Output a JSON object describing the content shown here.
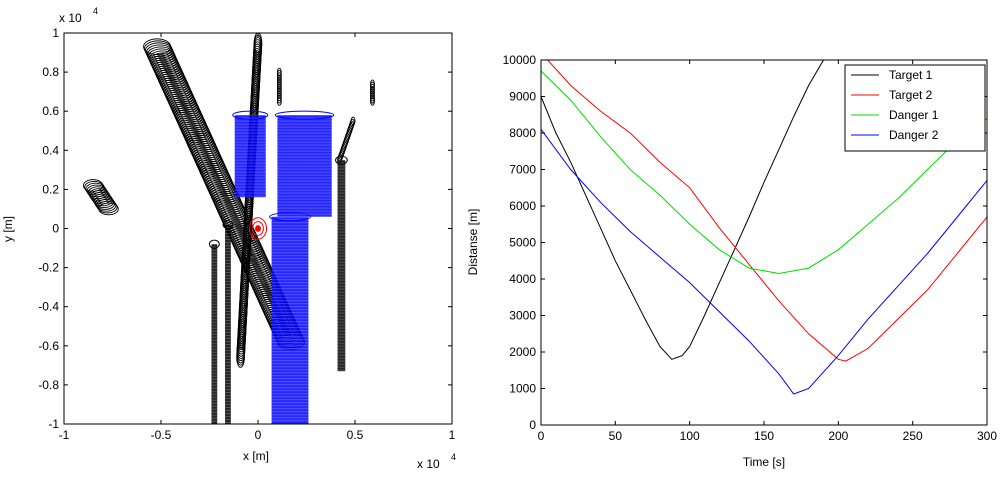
{
  "chart_data": [
    {
      "type": "scatter",
      "title": "",
      "xlabel": "x [m]",
      "ylabel": "y [m]",
      "x_exponent_label": "x 10",
      "x_exponent": "4",
      "y_exponent_label": "x 10",
      "y_exponent": "4",
      "xlim": [
        -1,
        1
      ],
      "ylim": [
        -1,
        1
      ],
      "units_scale": 10000,
      "xticks": [
        "-1",
        "-0.5",
        "0",
        "0.5",
        "1"
      ],
      "yticks": [
        "-1",
        "-0.8",
        "-0.6",
        "-0.4",
        "-0.2",
        "0",
        "0.2",
        "0.4",
        "0.6",
        "0.8",
        "1"
      ],
      "grid": false,
      "colors": {
        "tracks_black": "#000000",
        "tracks_blue": "#0000ff",
        "own_ship": "#ff0000"
      },
      "series": [
        {
          "color": "#000000",
          "kind": "ellipse-track",
          "tracks": [
            {
              "start": [
                -0.52,
                0.93
              ],
              "end": [
                0.17,
                -0.58
              ],
              "rx": 0.07,
              "ry": 0.04
            },
            {
              "start": [
                -0.85,
                0.22
              ],
              "end": [
                -0.77,
                0.1
              ],
              "rx": 0.05,
              "ry": 0.03
            },
            {
              "start": [
                0.0,
                0.95
              ],
              "end": [
                -0.09,
                -0.66
              ],
              "rx": 0.02,
              "ry": 0.05
            },
            {
              "start": [
                0.11,
                0.8
              ],
              "end": [
                0.11,
                0.65
              ],
              "rx": 0.01,
              "ry": 0.02
            },
            {
              "start": [
                0.59,
                0.74
              ],
              "end": [
                0.59,
                0.65
              ],
              "rx": 0.01,
              "ry": 0.02
            },
            {
              "start": [
                0.49,
                0.55
              ],
              "end": [
                0.42,
                0.35
              ],
              "rx": 0.01,
              "ry": 0.02
            }
          ]
        },
        {
          "color": "#000000",
          "kind": "bar-track",
          "tracks": [
            {
              "x0": -0.24,
              "x1": -0.21,
              "ytop": -0.08,
              "ybot": -1.0
            },
            {
              "x0": -0.17,
              "x1": -0.14,
              "ytop": 0.02,
              "ybot": -1.0
            },
            {
              "x0": 0.41,
              "x1": 0.45,
              "ytop": 0.35,
              "ybot": -0.73
            }
          ]
        },
        {
          "color": "#0000ff",
          "kind": "bar-track",
          "tracks": [
            {
              "x0": 0.07,
              "x1": 0.26,
              "ytop": 0.06,
              "ybot": -1.0
            },
            {
              "x0": -0.12,
              "x1": 0.04,
              "ytop": 0.58,
              "ybot": 0.16
            },
            {
              "x0": 0.1,
              "x1": 0.38,
              "ytop": 0.58,
              "ybot": 0.06
            }
          ]
        },
        {
          "color": "#ff0000",
          "kind": "own-ship",
          "center": [
            0.0,
            0.0
          ],
          "rings": [
            0.015,
            0.035,
            0.055
          ]
        }
      ]
    },
    {
      "type": "line",
      "title": "",
      "xlabel": "Time [s]",
      "ylabel": "Distanse [m]",
      "xlim": [
        0,
        300
      ],
      "ylim": [
        0,
        10000
      ],
      "xticks": [
        "0",
        "50",
        "100",
        "150",
        "200",
        "250",
        "300"
      ],
      "yticks": [
        "0",
        "1000",
        "2000",
        "3000",
        "4000",
        "5000",
        "6000",
        "7000",
        "8000",
        "9000",
        "10000"
      ],
      "grid": false,
      "legend_position": "top-right",
      "series": [
        {
          "name": "Target 1",
          "color": "#000000",
          "x": [
            0,
            10,
            20,
            30,
            40,
            50,
            60,
            70,
            80,
            88,
            95,
            100,
            110,
            120,
            130,
            140,
            150,
            160,
            170,
            180,
            190,
            196
          ],
          "values": [
            9000,
            8000,
            7200,
            6300,
            5400,
            4500,
            3700,
            2900,
            2150,
            1800,
            1900,
            2150,
            3000,
            3900,
            4800,
            5700,
            6650,
            7550,
            8450,
            9300,
            10000,
            10500
          ]
        },
        {
          "name": "Target 2",
          "color": "#ff0000",
          "x": [
            0,
            20,
            40,
            60,
            80,
            100,
            120,
            140,
            160,
            180,
            200,
            205,
            220,
            240,
            260,
            280,
            300
          ],
          "values": [
            10200,
            9300,
            8600,
            8000,
            7200,
            6500,
            5400,
            4400,
            3400,
            2500,
            1800,
            1750,
            2100,
            2900,
            3700,
            4700,
            5700
          ]
        },
        {
          "name": "Danger 1",
          "color": "#00dd00",
          "x": [
            0,
            20,
            40,
            60,
            80,
            100,
            120,
            140,
            160,
            180,
            200,
            220,
            240,
            260,
            280,
            300
          ],
          "values": [
            9700,
            8900,
            7900,
            7000,
            6300,
            5500,
            4800,
            4300,
            4150,
            4300,
            4800,
            5500,
            6200,
            7000,
            7800,
            8400
          ]
        },
        {
          "name": "Danger 2",
          "color": "#0000ff",
          "x": [
            0,
            20,
            40,
            60,
            80,
            100,
            120,
            140,
            160,
            170,
            180,
            200,
            220,
            240,
            260,
            280,
            300
          ],
          "values": [
            8100,
            7000,
            6100,
            5300,
            4600,
            3900,
            3100,
            2300,
            1400,
            850,
            1000,
            1900,
            2900,
            3800,
            4700,
            5700,
            6700
          ]
        }
      ]
    }
  ]
}
